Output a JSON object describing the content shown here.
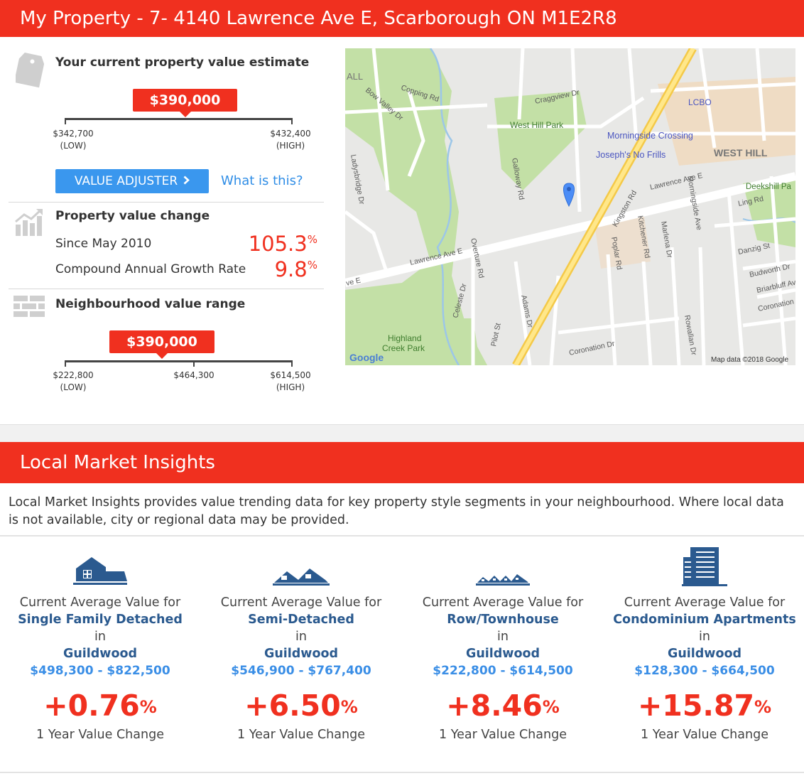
{
  "header": {
    "title": "My Property - 7- 4140 Lawrence Ave E, Scarborough ON M1E2R8"
  },
  "estimate": {
    "heading": "Your current property value estimate",
    "value": "$390,000",
    "low": "$342,700",
    "low_label": "(LOW)",
    "high": "$432,400",
    "high_label": "(HIGH)",
    "value_adjuster_label": "VALUE ADJUSTER",
    "what_is_this": "What is this?"
  },
  "change": {
    "heading": "Property value change",
    "since_label": "Since May 2010",
    "since_value": "105.3",
    "cagr_label": "Compound Annual Growth Rate",
    "cagr_value": "9.8",
    "pct": "%"
  },
  "neighbourhood": {
    "heading": "Neighbourhood value range",
    "value": "$390,000",
    "low": "$222,800",
    "low_label": "(LOW)",
    "mid": "$464,300",
    "high": "$614,500",
    "high_label": "(HIGH)"
  },
  "map": {
    "labels": {
      "wall": "ALL",
      "copping": "Copping Rd",
      "bowvalley": "Bow Valley Dr",
      "craggview": "Craggview Dr",
      "westhillpark": "West Hill Park",
      "lcbo": "LCBO",
      "morningside_crossing": "Morningside Crossing",
      "josephs": "Joseph's No Frills",
      "westhill": "WEST HILL",
      "deekshill": "Deekshill Pa",
      "lawrence1": "Lawrence Ave E",
      "lawrence2": "Lawrence Ave E",
      "lawrence3": "ve E",
      "kingston": "Kingston Rd",
      "ling": "Ling Rd",
      "danzig": "Danzig St",
      "budworth": "Budworth Dr",
      "briarbluff": "Briarbluff Av",
      "coronation1": "Coronation",
      "coronation2": "Coronation Dr",
      "ladysbridge": "Ladysbridge Dr",
      "overture": "Overture Rd",
      "celeste": "Celeste Dr",
      "adams": "Adams Dr",
      "pilot": "Pilot St",
      "highland": "Highland",
      "creekpark": "Creek Park",
      "galloway": "Galloway Rd",
      "poplar": "Poplar Rd",
      "kitchener": "Kitchener Rd",
      "marlena": "Marlena Dr",
      "rowallan": "Rowallan Dr",
      "morningside_ave": "Morningside Ave",
      "google": "Google",
      "mapdata": "Map data ©2018 Google"
    }
  },
  "insights": {
    "title": "Local Market Insights",
    "intro": "Local Market Insights provides value trending data for key property style segments in your neighbourhood. Where local data is not available, city or regional data may be provided.",
    "cards": [
      {
        "icon": "single-family-house-icon",
        "line1": "Current Average Value for",
        "style": "Single Family Detached",
        "in": "in",
        "neighbourhood": "Guildwood",
        "range": "$498,300 - $822,500",
        "change": "+0.76",
        "pct": "%",
        "change_label": "1 Year Value Change"
      },
      {
        "icon": "semi-detached-house-icon",
        "line1": "Current Average Value for",
        "style": "Semi-Detached",
        "in": "in",
        "neighbourhood": "Guildwood",
        "range": "$546,900 - $767,400",
        "change": "+6.50",
        "pct": "%",
        "change_label": "1 Year Value Change"
      },
      {
        "icon": "townhouse-row-icon",
        "line1": "Current Average Value for",
        "style": "Row/Townhouse",
        "in": "in",
        "neighbourhood": "Guildwood",
        "range": "$222,800 - $614,500",
        "change": "+8.46",
        "pct": "%",
        "change_label": "1 Year Value Change"
      },
      {
        "icon": "condo-building-icon",
        "line1": "Current Average Value for",
        "style": "Condominium Apartments",
        "in": "in",
        "neighbourhood": "Guildwood",
        "range": "$128,300 - $664,500",
        "change": "+15.87",
        "pct": "%",
        "change_label": "1 Year Value Change"
      }
    ]
  },
  "colors": {
    "brand_red": "#f0301f",
    "accent_blue": "#3a97ee",
    "label_blue": "#2b5a8f"
  }
}
